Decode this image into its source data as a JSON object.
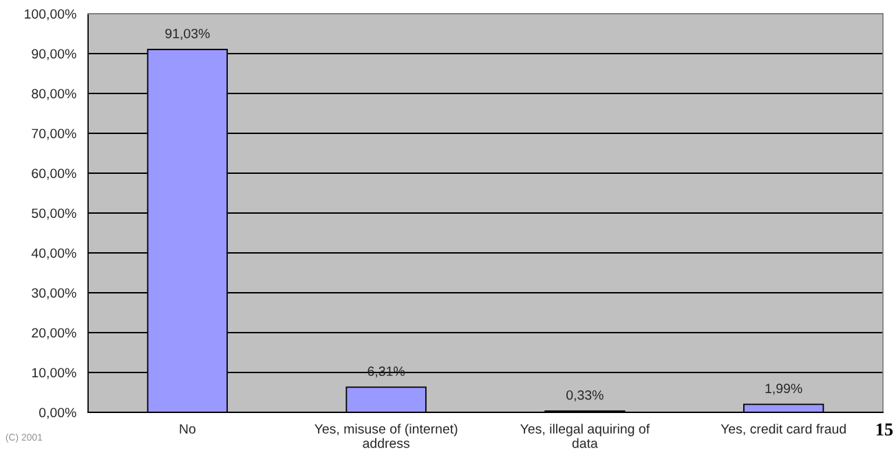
{
  "chart_data": {
    "type": "bar",
    "categories": [
      "No",
      "Yes, misuse of (internet)\naddress",
      "Yes, illegal aquiring of\ndata",
      "Yes, credit card fraud"
    ],
    "values": [
      91.03,
      6.31,
      0.33,
      1.99
    ],
    "value_labels": [
      "91,03%",
      "6,31%",
      "0,33%",
      "1,99%"
    ],
    "color": "#9999ff",
    "ylim": [
      0,
      100
    ],
    "yticks": [
      {
        "value": 0,
        "label": "0,00%"
      },
      {
        "value": 10,
        "label": "10,00%"
      },
      {
        "value": 20,
        "label": "20,00%"
      },
      {
        "value": 30,
        "label": "30,00%"
      },
      {
        "value": 40,
        "label": "40,00%"
      },
      {
        "value": 50,
        "label": "50,00%"
      },
      {
        "value": 60,
        "label": "60,00%"
      },
      {
        "value": 70,
        "label": "70,00%"
      },
      {
        "value": 80,
        "label": "80,00%"
      },
      {
        "value": 90,
        "label": "90,00%"
      },
      {
        "value": 100,
        "label": "100,00%"
      }
    ],
    "grid": "y",
    "annotations": [
      "(C) 2001",
      "15"
    ]
  }
}
